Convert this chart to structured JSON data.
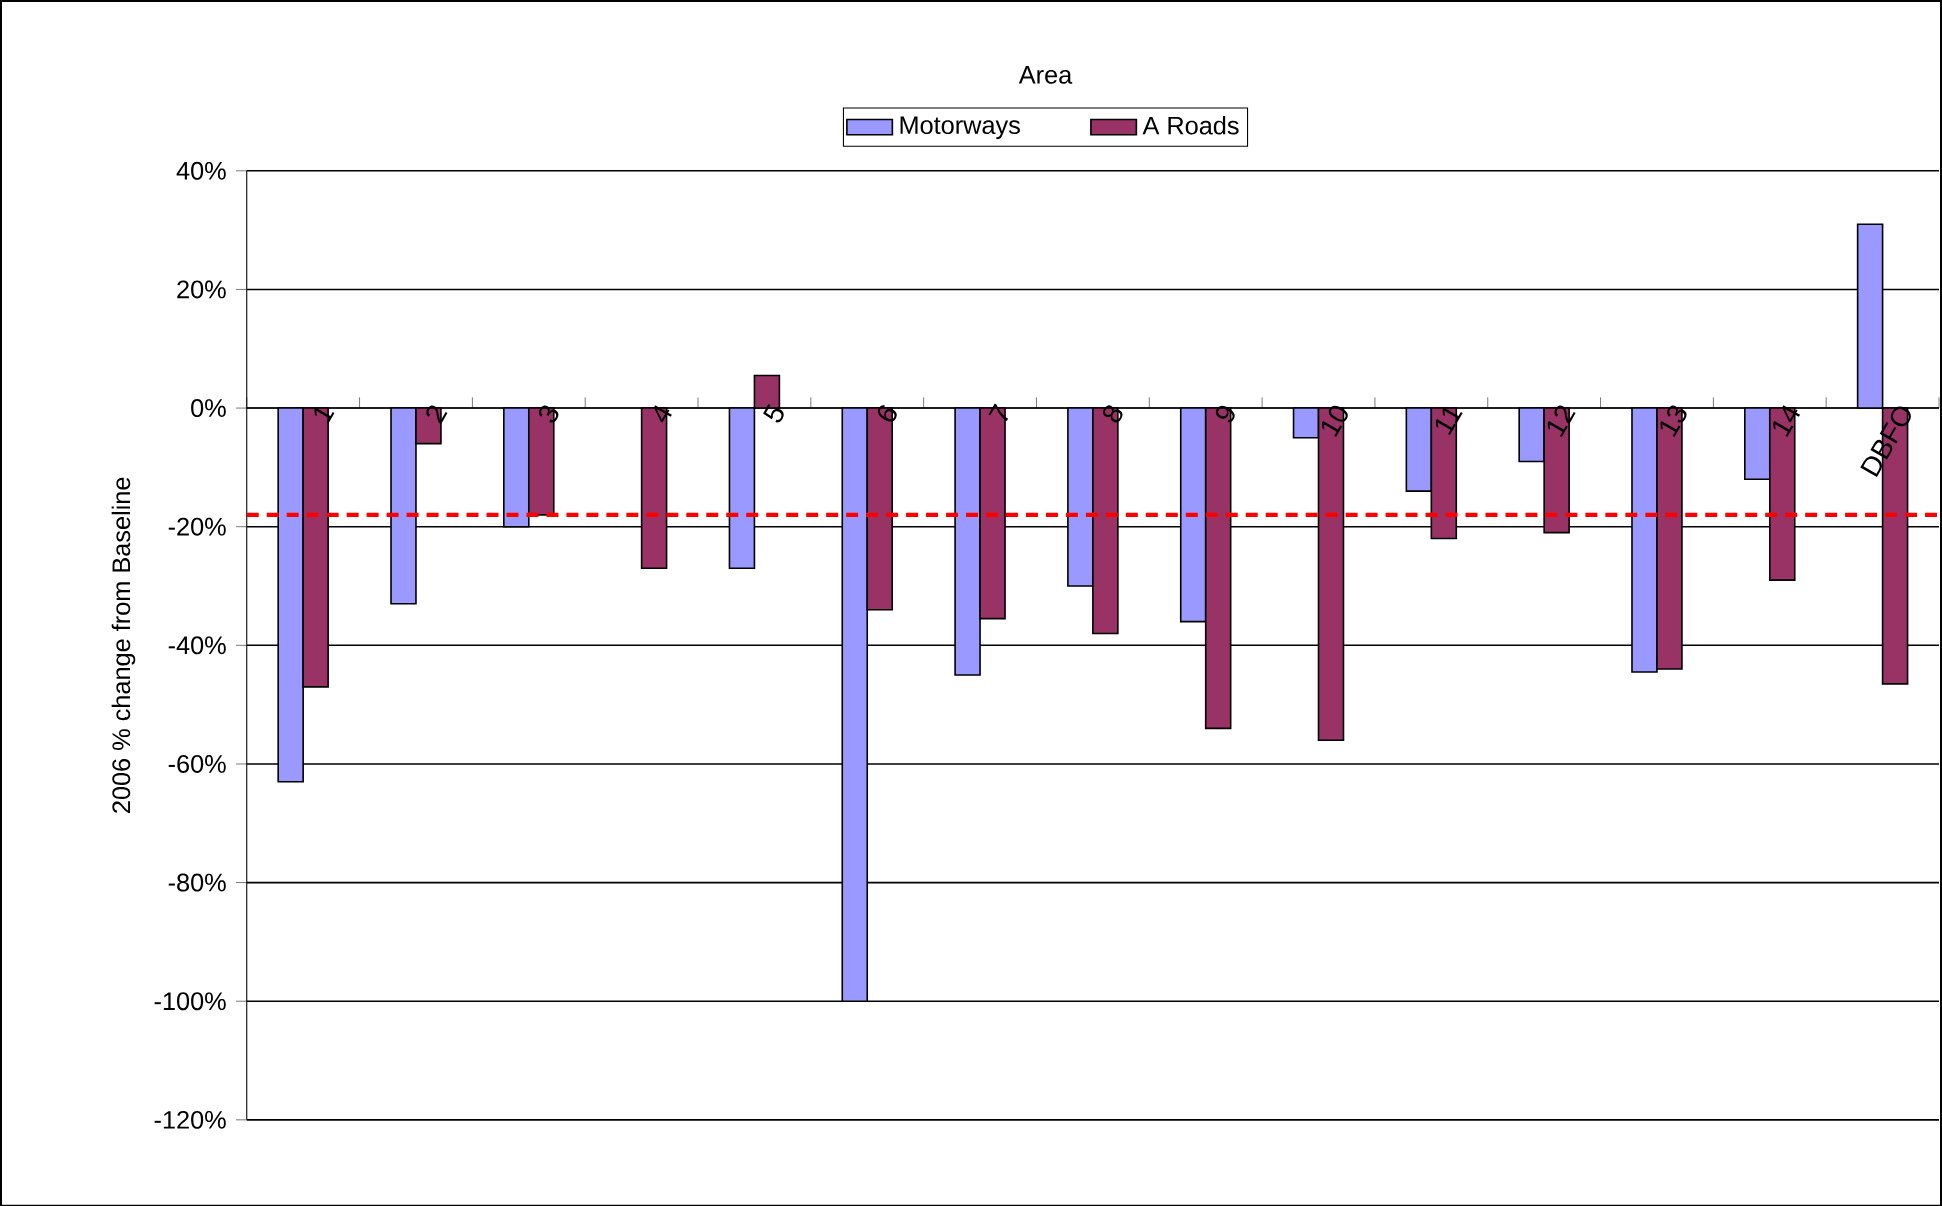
{
  "chart_data": {
    "type": "bar",
    "ylabel": "2006 % change from Baseline",
    "legend_title": "Area",
    "legend": "top",
    "grid": "y",
    "categories": [
      "1",
      "2",
      "3",
      "4",
      "5",
      "6",
      "7",
      "8",
      "9",
      "10",
      "11",
      "12",
      "13",
      "14",
      "DBFO"
    ],
    "series": [
      {
        "name": "Motorways",
        "color": "#9999ff",
        "values": [
          -63,
          -33,
          -20,
          null,
          -27,
          -100,
          -45,
          -30,
          -36,
          -5,
          -14,
          -9,
          -44.5,
          -12,
          31
        ]
      },
      {
        "name": "A Roads",
        "color": "#993366",
        "values": [
          -47,
          -6,
          -18,
          -27,
          5.5,
          -34,
          -35.5,
          -38,
          -54,
          -56,
          -22,
          -21,
          -44,
          -29,
          -46.5
        ]
      }
    ],
    "ylim": [
      -120,
      40
    ],
    "yticks": [
      {
        "value": -120,
        "label": "-120%"
      },
      {
        "value": -100,
        "label": "-100%"
      },
      {
        "value": -80,
        "label": "-80%"
      },
      {
        "value": -60,
        "label": "-60%"
      },
      {
        "value": -40,
        "label": "-40%"
      },
      {
        "value": -20,
        "label": "-20%"
      },
      {
        "value": 0,
        "label": "0%"
      },
      {
        "value": 20,
        "label": "20%"
      },
      {
        "value": 40,
        "label": "40%"
      }
    ],
    "ref_lines": [
      {
        "axis": "y",
        "value": -18,
        "color": "#ff0000",
        "line_style": "dashed"
      }
    ]
  }
}
